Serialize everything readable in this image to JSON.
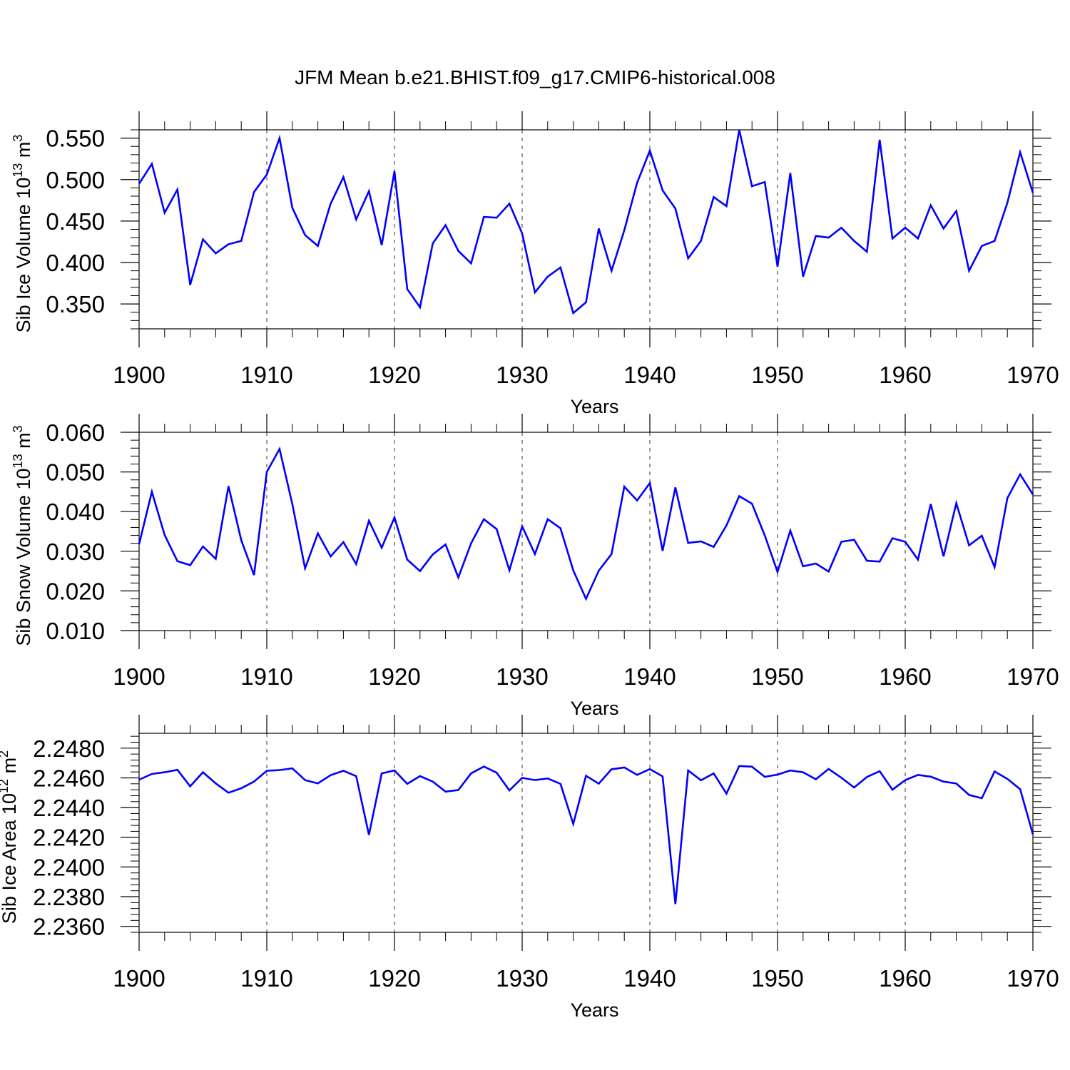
{
  "title": "JFM Mean b.e21.BHIST.f09_g17.CMIP6-historical.008",
  "line_color": "#0000ff",
  "chart_data": [
    {
      "type": "line",
      "title": "",
      "xlabel": "Years",
      "ylabel_main": "Sib Ice Volume 10",
      "ylabel_exp": "13",
      "ylabel_unit": " m",
      "ylabel_unit_exp": "3",
      "xlim": [
        1900,
        1970
      ],
      "ylim": [
        0.32,
        0.56
      ],
      "x_ticks": [
        1900,
        1910,
        1920,
        1930,
        1940,
        1950,
        1960,
        1970
      ],
      "x_tick_labels": [
        "1900",
        "1910",
        "1920",
        "1930",
        "1940",
        "1950",
        "1960",
        "1970"
      ],
      "y_ticks": [
        0.35,
        0.4,
        0.45,
        0.5,
        0.55
      ],
      "y_tick_labels": [
        "0.350",
        "0.400",
        "0.450",
        "0.500",
        "0.550"
      ],
      "y_minor_step": 0.01,
      "series": [
        {
          "name": "Sib Ice Volume",
          "x": [
            1900,
            1901,
            1902,
            1903,
            1904,
            1905,
            1906,
            1907,
            1908,
            1909,
            1910,
            1911,
            1912,
            1913,
            1914,
            1915,
            1916,
            1917,
            1918,
            1919,
            1920,
            1921,
            1922,
            1923,
            1924,
            1925,
            1926,
            1927,
            1928,
            1929,
            1930,
            1931,
            1932,
            1933,
            1934,
            1935,
            1936,
            1937,
            1938,
            1939,
            1940,
            1941,
            1942,
            1943,
            1944,
            1945,
            1946,
            1947,
            1948,
            1949,
            1950,
            1951,
            1952,
            1953,
            1954,
            1955,
            1956,
            1957,
            1958,
            1959,
            1960,
            1961,
            1962,
            1963,
            1964,
            1965,
            1966,
            1967,
            1968,
            1969,
            1970
          ],
          "values": [
            0.495,
            0.519,
            0.46,
            0.488,
            0.373,
            0.428,
            0.411,
            0.422,
            0.426,
            0.485,
            0.506,
            0.55,
            0.466,
            0.433,
            0.42,
            0.471,
            0.503,
            0.452,
            0.486,
            0.421,
            0.51,
            0.368,
            0.346,
            0.423,
            0.445,
            0.414,
            0.399,
            0.455,
            0.454,
            0.471,
            0.435,
            0.364,
            0.383,
            0.394,
            0.339,
            0.352,
            0.441,
            0.39,
            0.439,
            0.496,
            0.535,
            0.487,
            0.465,
            0.405,
            0.426,
            0.479,
            0.468,
            0.56,
            0.492,
            0.497,
            0.395,
            0.508,
            0.383,
            0.432,
            0.43,
            0.442,
            0.426,
            0.413,
            0.548,
            0.429,
            0.442,
            0.429,
            0.469,
            0.441,
            0.462,
            0.39,
            0.42,
            0.426,
            0.472,
            0.533,
            0.484
          ]
        }
      ]
    },
    {
      "type": "line",
      "title": "",
      "xlabel": "Years",
      "ylabel_main": "Sib Snow Volume 10",
      "ylabel_exp": "13",
      "ylabel_unit": " m",
      "ylabel_unit_exp": "3",
      "xlim": [
        1900,
        1970
      ],
      "ylim": [
        0.01,
        0.06
      ],
      "x_ticks": [
        1900,
        1910,
        1920,
        1930,
        1940,
        1950,
        1960,
        1970
      ],
      "x_tick_labels": [
        "1900",
        "1910",
        "1920",
        "1930",
        "1940",
        "1950",
        "1960",
        "1970"
      ],
      "y_ticks": [
        0.01,
        0.02,
        0.03,
        0.04,
        0.05,
        0.06
      ],
      "y_tick_labels": [
        "0.010",
        "0.020",
        "0.030",
        "0.040",
        "0.050",
        "0.060"
      ],
      "y_minor_step": 0.002,
      "series": [
        {
          "name": "Sib Snow Volume",
          "x": [
            1900,
            1901,
            1902,
            1903,
            1904,
            1905,
            1906,
            1907,
            1908,
            1909,
            1910,
            1911,
            1912,
            1913,
            1914,
            1915,
            1916,
            1917,
            1918,
            1919,
            1920,
            1921,
            1922,
            1923,
            1924,
            1925,
            1926,
            1927,
            1928,
            1929,
            1930,
            1931,
            1932,
            1933,
            1934,
            1935,
            1936,
            1937,
            1938,
            1939,
            1940,
            1941,
            1942,
            1943,
            1944,
            1945,
            1946,
            1947,
            1948,
            1949,
            1950,
            1951,
            1952,
            1953,
            1954,
            1955,
            1956,
            1957,
            1958,
            1959,
            1960,
            1961,
            1962,
            1963,
            1964,
            1965,
            1966,
            1967,
            1968,
            1969,
            1970
          ],
          "values": [
            0.0318,
            0.045,
            0.0341,
            0.0275,
            0.0265,
            0.0312,
            0.0281,
            0.0464,
            0.0328,
            0.024,
            0.05,
            0.0558,
            0.0419,
            0.0257,
            0.0345,
            0.0287,
            0.0323,
            0.0268,
            0.0377,
            0.0309,
            0.0385,
            0.0279,
            0.025,
            0.0292,
            0.0317,
            0.0234,
            0.032,
            0.0381,
            0.0356,
            0.0252,
            0.0363,
            0.0293,
            0.0381,
            0.0358,
            0.0252,
            0.018,
            0.0251,
            0.0293,
            0.0463,
            0.0428,
            0.0472,
            0.0301,
            0.0461,
            0.0321,
            0.0325,
            0.0311,
            0.0365,
            0.0439,
            0.042,
            0.034,
            0.0248,
            0.0352,
            0.0262,
            0.0269,
            0.0249,
            0.0324,
            0.0329,
            0.0276,
            0.0274,
            0.0333,
            0.0324,
            0.0279,
            0.0419,
            0.0287,
            0.0421,
            0.0315,
            0.0339,
            0.026,
            0.0434,
            0.0494,
            0.0443
          ]
        }
      ]
    },
    {
      "type": "line",
      "title": "",
      "xlabel": "Years",
      "ylabel_main": "Sib Ice Area 10",
      "ylabel_exp": "12",
      "ylabel_unit": " m",
      "ylabel_unit_exp": "2",
      "xlim": [
        1900,
        1970
      ],
      "ylim": [
        2.2356,
        2.249
      ],
      "x_ticks": [
        1900,
        1910,
        1920,
        1930,
        1940,
        1950,
        1960,
        1970
      ],
      "x_tick_labels": [
        "1900",
        "1910",
        "1920",
        "1930",
        "1940",
        "1950",
        "1960",
        "1970"
      ],
      "y_ticks": [
        2.236,
        2.238,
        2.24,
        2.242,
        2.244,
        2.246,
        2.248
      ],
      "y_tick_labels": [
        "2.2360",
        "2.2380",
        "2.2400",
        "2.2420",
        "2.2440",
        "2.2460",
        "2.2480"
      ],
      "y_minor_step": 0.0004,
      "series": [
        {
          "name": "Sib Ice Area",
          "x": [
            1900,
            1901,
            1902,
            1903,
            1904,
            1905,
            1906,
            1907,
            1908,
            1909,
            1910,
            1911,
            1912,
            1913,
            1914,
            1915,
            1916,
            1917,
            1918,
            1919,
            1920,
            1921,
            1922,
            1923,
            1924,
            1925,
            1926,
            1927,
            1928,
            1929,
            1930,
            1931,
            1932,
            1933,
            1934,
            1935,
            1936,
            1937,
            1938,
            1939,
            1940,
            1941,
            1942,
            1943,
            1944,
            1945,
            1946,
            1947,
            1948,
            1949,
            1950,
            1951,
            1952,
            1953,
            1954,
            1955,
            1956,
            1957,
            1958,
            1959,
            1960,
            1961,
            1962,
            1963,
            1964,
            1965,
            1966,
            1967,
            1968,
            1969,
            1970
          ],
          "values": [
            2.24588,
            2.24626,
            2.24638,
            2.24654,
            2.24543,
            2.24638,
            2.24563,
            2.245,
            2.2453,
            2.24575,
            2.24648,
            2.24652,
            2.24664,
            2.24585,
            2.24563,
            2.24618,
            2.24648,
            2.24612,
            2.24216,
            2.2463,
            2.2465,
            2.2456,
            2.24612,
            2.24575,
            2.24507,
            2.24518,
            2.2463,
            2.24676,
            2.24635,
            2.24516,
            2.246,
            2.24585,
            2.24596,
            2.2456,
            2.2429,
            2.24614,
            2.24561,
            2.24658,
            2.2467,
            2.2462,
            2.24659,
            2.2461,
            2.2375,
            2.2465,
            2.24584,
            2.2463,
            2.24494,
            2.2468,
            2.24675,
            2.24607,
            2.24622,
            2.2465,
            2.24638,
            2.2459,
            2.2466,
            2.24601,
            2.24535,
            2.24606,
            2.24645,
            2.2452,
            2.24585,
            2.2462,
            2.24608,
            2.24575,
            2.24562,
            2.24485,
            2.24463,
            2.24643,
            2.24593,
            2.24524,
            2.2422
          ]
        }
      ]
    }
  ]
}
